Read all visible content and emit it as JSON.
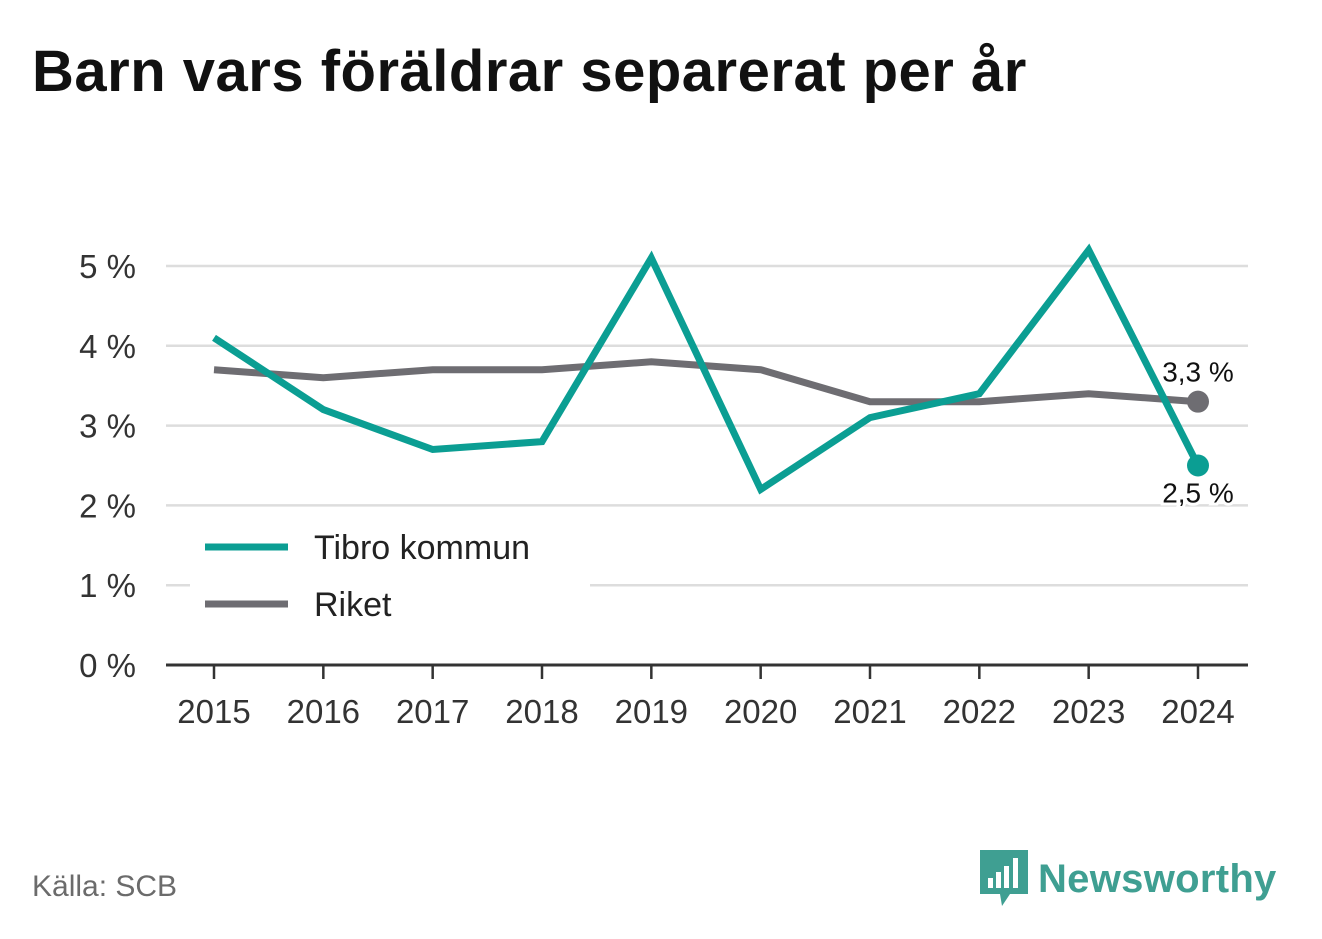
{
  "title": "Barn vars föräldrar separerat per år",
  "source": "Källa: SCB",
  "brand": {
    "name": "Newsworthy",
    "icon": "bar-chart-speech-icon",
    "color": "#3f9f92"
  },
  "colors": {
    "tibro": "#0b9e93",
    "riket": "#6e6d72",
    "grid": "#dddddd",
    "axis": "#333333",
    "text": "#333333"
  },
  "chart_data": {
    "type": "line",
    "title": "Barn vars föräldrar separerat per år",
    "x": [
      "2015",
      "2016",
      "2017",
      "2018",
      "2019",
      "2020",
      "2021",
      "2022",
      "2023",
      "2024"
    ],
    "ylim": [
      0,
      5
    ],
    "yticks": [
      0,
      1,
      2,
      3,
      4,
      5
    ],
    "ytick_labels": [
      "0 %",
      "1 %",
      "2 %",
      "3 %",
      "4 %",
      "5 %"
    ],
    "grid": true,
    "legend_position": "bottom-left",
    "series": [
      {
        "name": "Tibro kommun",
        "color": "#0b9e93",
        "values": [
          4.1,
          3.2,
          2.7,
          2.8,
          5.1,
          2.2,
          3.1,
          3.4,
          5.2,
          2.5
        ],
        "end_label": "2,5 %"
      },
      {
        "name": "Riket",
        "color": "#6e6d72",
        "values": [
          3.7,
          3.6,
          3.7,
          3.7,
          3.8,
          3.7,
          3.3,
          3.3,
          3.4,
          3.3
        ],
        "end_label": "3,3 %"
      }
    ]
  }
}
